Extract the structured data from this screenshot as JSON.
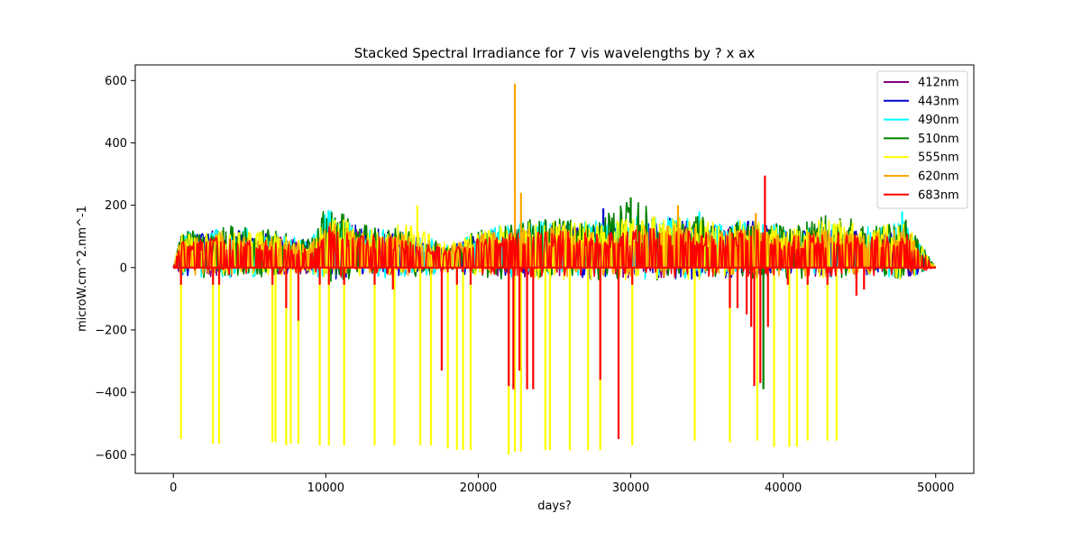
{
  "chart_data": {
    "type": "line",
    "title": "Stacked Spectral Irradiance for 7 vis wavelengths by ? x ax",
    "xlabel": "days?",
    "ylabel": "microW.cm^2.nm^-1",
    "xlim": [
      -2500,
      52500
    ],
    "ylim": [
      -660,
      650
    ],
    "xticks": [
      0,
      10000,
      20000,
      30000,
      40000,
      50000
    ],
    "yticks": [
      -600,
      -400,
      -200,
      0,
      200,
      400,
      600
    ],
    "xtick_labels": [
      "0",
      "10000",
      "20000",
      "30000",
      "40000",
      "50000"
    ],
    "ytick_labels": [
      "−600",
      "−400",
      "−200",
      "0",
      "200",
      "400",
      "600"
    ],
    "grid": false,
    "legend_position": "top-right",
    "x_extent": [
      0,
      50000
    ],
    "series": [
      {
        "name": "412nm",
        "color": "#800080",
        "envelope": {
          "x": [
            0,
            500,
            3000,
            6000,
            9000,
            10000,
            12000,
            15000,
            18000,
            20000,
            22000,
            25000,
            28000,
            30000,
            33000,
            36000,
            38000,
            40000,
            43000,
            46000,
            48000,
            50000
          ],
          "upper": [
            0,
            100,
            120,
            110,
            80,
            170,
            130,
            110,
            60,
            100,
            120,
            130,
            130,
            140,
            150,
            120,
            140,
            110,
            120,
            110,
            130,
            0
          ]
        },
        "spikes": []
      },
      {
        "name": "443nm",
        "color": "#0000cd",
        "envelope": {
          "x": [
            0,
            500,
            3000,
            6000,
            9000,
            10000,
            12000,
            15000,
            18000,
            20000,
            22000,
            25000,
            28000,
            30000,
            33000,
            36000,
            38000,
            40000,
            43000,
            46000,
            48000,
            50000
          ],
          "upper": [
            0,
            105,
            125,
            115,
            85,
            180,
            135,
            115,
            65,
            110,
            130,
            140,
            140,
            150,
            160,
            130,
            150,
            120,
            130,
            120,
            140,
            0
          ]
        },
        "spikes": [
          {
            "x": 28200,
            "y": 190
          },
          {
            "x": 37700,
            "y": 150
          }
        ]
      },
      {
        "name": "490nm",
        "color": "#00ffff",
        "envelope": {
          "x": [
            0,
            500,
            3000,
            6000,
            9000,
            10000,
            12000,
            15000,
            18000,
            20000,
            22000,
            25000,
            28000,
            30000,
            33000,
            36000,
            38000,
            40000,
            43000,
            46000,
            48000,
            50000
          ],
          "upper": [
            0,
            110,
            135,
            125,
            90,
            190,
            145,
            125,
            75,
            120,
            140,
            150,
            150,
            160,
            170,
            140,
            160,
            130,
            140,
            130,
            150,
            0
          ]
        },
        "spikes": [
          {
            "x": 34500,
            "y": 180
          },
          {
            "x": 47800,
            "y": 180
          }
        ]
      },
      {
        "name": "510nm",
        "color": "#008000",
        "envelope": {
          "x": [
            0,
            500,
            3000,
            6000,
            9000,
            10000,
            12000,
            15000,
            18000,
            20000,
            22000,
            25000,
            28000,
            30000,
            33000,
            36000,
            38000,
            40000,
            43000,
            46000,
            48000,
            50000
          ],
          "upper": [
            0,
            115,
            140,
            130,
            95,
            205,
            150,
            130,
            80,
            130,
            150,
            160,
            160,
            225,
            180,
            150,
            170,
            140,
            175,
            140,
            160,
            0
          ]
        },
        "spikes": [
          {
            "x": 30000,
            "y": 225
          },
          {
            "x": 38700,
            "y": -390
          }
        ]
      },
      {
        "name": "555nm",
        "color": "#ffff00",
        "envelope": {
          "x": [
            0,
            500,
            3000,
            6000,
            9000,
            10000,
            12000,
            15000,
            18000,
            20000,
            22000,
            25000,
            28000,
            30000,
            33000,
            36000,
            38000,
            40000,
            43000,
            46000,
            48000,
            50000
          ],
          "upper": [
            0,
            110,
            130,
            120,
            90,
            180,
            140,
            150,
            80,
            120,
            140,
            150,
            150,
            170,
            170,
            140,
            160,
            130,
            160,
            130,
            150,
            0
          ]
        },
        "spikes": [
          {
            "x": 500,
            "y": -550
          },
          {
            "x": 2600,
            "y": -565
          },
          {
            "x": 3000,
            "y": -565
          },
          {
            "x": 6500,
            "y": -560
          },
          {
            "x": 6700,
            "y": -560
          },
          {
            "x": 7400,
            "y": -570
          },
          {
            "x": 7700,
            "y": -565
          },
          {
            "x": 8200,
            "y": -565
          },
          {
            "x": 9600,
            "y": -570
          },
          {
            "x": 10200,
            "y": -570
          },
          {
            "x": 11200,
            "y": -570
          },
          {
            "x": 13200,
            "y": -570
          },
          {
            "x": 14500,
            "y": -570
          },
          {
            "x": 16200,
            "y": -570
          },
          {
            "x": 16900,
            "y": -570
          },
          {
            "x": 18000,
            "y": -580
          },
          {
            "x": 18600,
            "y": -585
          },
          {
            "x": 19000,
            "y": -585
          },
          {
            "x": 19500,
            "y": -585
          },
          {
            "x": 22000,
            "y": -600
          },
          {
            "x": 22400,
            "y": -590
          },
          {
            "x": 22800,
            "y": -590
          },
          {
            "x": 24400,
            "y": -585
          },
          {
            "x": 24700,
            "y": -585
          },
          {
            "x": 26000,
            "y": -585
          },
          {
            "x": 27200,
            "y": -585
          },
          {
            "x": 28000,
            "y": -585
          },
          {
            "x": 30100,
            "y": -570
          },
          {
            "x": 34200,
            "y": -555
          },
          {
            "x": 36500,
            "y": -560
          },
          {
            "x": 38300,
            "y": -555
          },
          {
            "x": 39400,
            "y": -575
          },
          {
            "x": 40400,
            "y": -575
          },
          {
            "x": 40900,
            "y": -575
          },
          {
            "x": 41600,
            "y": -555
          },
          {
            "x": 42900,
            "y": -555
          },
          {
            "x": 43500,
            "y": -555
          },
          {
            "x": 16000,
            "y": 200
          }
        ]
      },
      {
        "name": "620nm",
        "color": "#ffa500",
        "envelope": {
          "x": [
            0,
            500,
            3000,
            6000,
            9000,
            10000,
            12000,
            15000,
            18000,
            20000,
            22000,
            25000,
            28000,
            30000,
            33000,
            36000,
            38000,
            40000,
            43000,
            46000,
            48000,
            50000
          ],
          "upper": [
            0,
            95,
            110,
            100,
            75,
            150,
            120,
            110,
            70,
            105,
            120,
            130,
            120,
            140,
            140,
            120,
            140,
            110,
            125,
            110,
            130,
            0
          ]
        },
        "spikes": [
          {
            "x": 22400,
            "y": 590
          },
          {
            "x": 22800,
            "y": 240
          },
          {
            "x": 33100,
            "y": 200
          },
          {
            "x": 38200,
            "y": 175
          }
        ]
      },
      {
        "name": "683nm",
        "color": "#ff0000",
        "envelope": {
          "x": [
            0,
            500,
            3000,
            6000,
            9000,
            10000,
            12000,
            15000,
            18000,
            20000,
            22000,
            25000,
            28000,
            30000,
            33000,
            36000,
            38000,
            40000,
            43000,
            46000,
            48000,
            50000
          ],
          "upper": [
            0,
            85,
            100,
            90,
            65,
            140,
            110,
            95,
            60,
            95,
            110,
            120,
            110,
            125,
            125,
            110,
            125,
            100,
            115,
            100,
            115,
            0
          ]
        },
        "spikes": [
          {
            "x": 500,
            "y": -55
          },
          {
            "x": 2600,
            "y": -55
          },
          {
            "x": 3000,
            "y": -55
          },
          {
            "x": 6500,
            "y": -55
          },
          {
            "x": 7400,
            "y": -130
          },
          {
            "x": 8200,
            "y": -170
          },
          {
            "x": 9600,
            "y": -55
          },
          {
            "x": 10200,
            "y": -55
          },
          {
            "x": 11200,
            "y": -55
          },
          {
            "x": 13200,
            "y": -55
          },
          {
            "x": 14400,
            "y": -70
          },
          {
            "x": 17600,
            "y": -330
          },
          {
            "x": 18600,
            "y": -55
          },
          {
            "x": 19500,
            "y": -55
          },
          {
            "x": 22000,
            "y": -380
          },
          {
            "x": 22300,
            "y": -390
          },
          {
            "x": 22700,
            "y": -330
          },
          {
            "x": 23200,
            "y": -390
          },
          {
            "x": 23600,
            "y": -390
          },
          {
            "x": 28000,
            "y": -360
          },
          {
            "x": 29200,
            "y": -550
          },
          {
            "x": 30100,
            "y": -55
          },
          {
            "x": 36500,
            "y": -130
          },
          {
            "x": 37000,
            "y": -130
          },
          {
            "x": 37600,
            "y": -150
          },
          {
            "x": 37900,
            "y": -190
          },
          {
            "x": 38100,
            "y": -380
          },
          {
            "x": 38500,
            "y": -370
          },
          {
            "x": 38800,
            "y": 295
          },
          {
            "x": 39000,
            "y": -190
          },
          {
            "x": 40300,
            "y": -55
          },
          {
            "x": 41600,
            "y": -55
          },
          {
            "x": 42900,
            "y": -55
          },
          {
            "x": 44800,
            "y": -90
          },
          {
            "x": 45300,
            "y": -70
          }
        ]
      }
    ]
  }
}
